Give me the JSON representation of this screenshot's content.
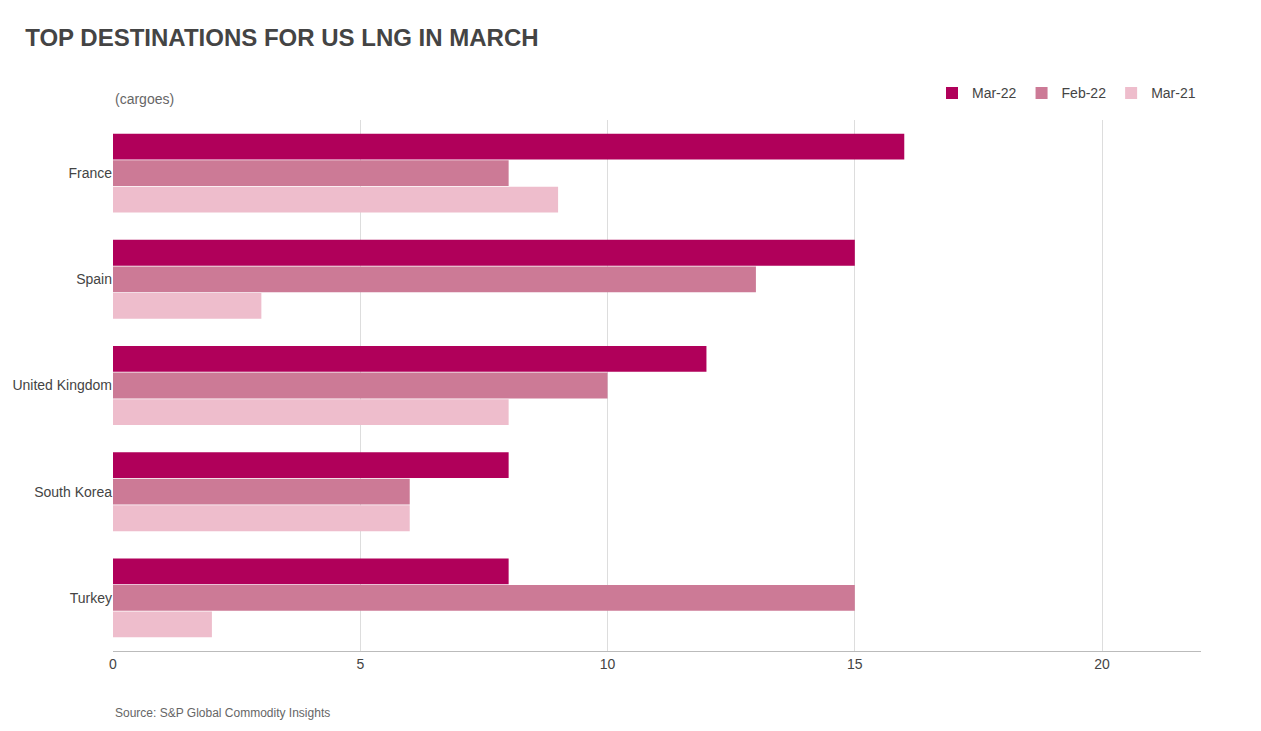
{
  "chart_data": {
    "type": "bar",
    "orientation": "horizontal",
    "title": "TOP DESTINATIONS FOR US LNG IN MARCH",
    "subtitle": "(cargoes)",
    "source": "Source: S&P Global Commodity Insights",
    "categories": [
      "France",
      "Spain",
      "United Kingdom",
      "South Korea",
      "Turkey"
    ],
    "series": [
      {
        "name": "Mar-22",
        "color": "#B0005A",
        "values": [
          16,
          15,
          12,
          8,
          8
        ]
      },
      {
        "name": "Feb-22",
        "color": "#CC7A96",
        "values": [
          8,
          13,
          10,
          6,
          15
        ]
      },
      {
        "name": "Mar-21",
        "color": "#EEBDCC",
        "values": [
          9,
          3,
          8,
          6,
          2
        ]
      }
    ],
    "xlim": [
      0,
      22
    ],
    "xticks": [
      0,
      5,
      10,
      15,
      20
    ],
    "grid": true,
    "legend": "upper right"
  }
}
